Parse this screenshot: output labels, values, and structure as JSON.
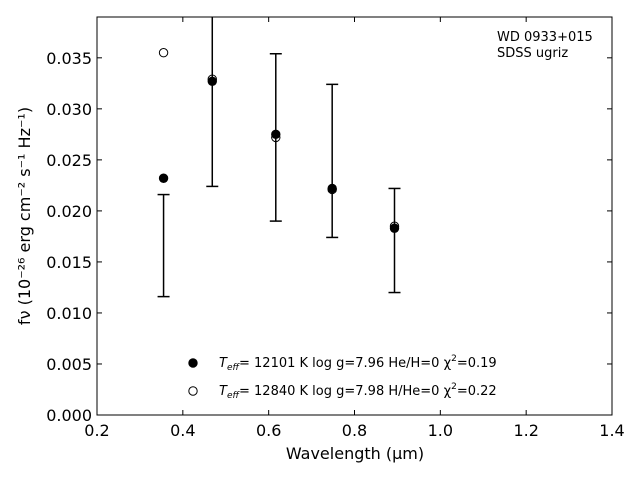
{
  "chart_data": {
    "type": "scatter",
    "title": "",
    "annotation": [
      "WD 0933+015",
      "SDSS ugriz"
    ],
    "xlabel": "Wavelength",
    "xlabel_unit": "(μm)",
    "ylabel": "fν (10⁻²⁶ erg cm⁻² s⁻¹ Hz⁻¹)",
    "xlim": [
      0.2,
      1.4
    ],
    "ylim": [
      0.0,
      0.039
    ],
    "xticks": [
      "0.2",
      "0.4",
      "0.6",
      "0.8",
      "1.0",
      "1.2",
      "1.4"
    ],
    "yticks": [
      "0.000",
      "0.005",
      "0.010",
      "0.015",
      "0.020",
      "0.025",
      "0.030",
      "0.035"
    ],
    "xtick_values": [
      0.2,
      0.4,
      0.6,
      0.8,
      1.0,
      1.2,
      1.4
    ],
    "ytick_values": [
      0.0,
      0.005,
      0.01,
      0.015,
      0.02,
      0.025,
      0.03,
      0.035
    ],
    "observed": {
      "x": [
        0.3551,
        0.4686,
        0.6166,
        0.748,
        0.8932
      ],
      "y": [
        0.0166,
        0.0327,
        0.0272,
        0.0249,
        0.0171
      ],
      "yerr": [
        0.005,
        0.0103,
        0.0082,
        0.0075,
        0.0051
      ]
    },
    "series": [
      {
        "name": "T_eff= 12101 K  log g=7.96  He/H=0  χ²=0.19",
        "marker": "filled",
        "x": [
          0.3551,
          0.4686,
          0.6166,
          0.748,
          0.8932
        ],
        "y": [
          0.0232,
          0.0327,
          0.0275,
          0.0222,
          0.0183
        ]
      },
      {
        "name": "T_eff= 12840 K  log g=7.98  H/He=0  χ²=0.22",
        "marker": "open",
        "x": [
          0.3551,
          0.4686,
          0.6166,
          0.748,
          0.8932
        ],
        "y": [
          0.0355,
          0.0329,
          0.0272,
          0.0221,
          0.0185
        ]
      }
    ],
    "legend": [
      {
        "teff": "T",
        "sub": "eff",
        "rest": "= 12101 K  log g=7.96  He/H=0  χ",
        "sup": "2",
        "tail": "=0.19"
      },
      {
        "teff": "T",
        "sub": "eff",
        "rest": "= 12840 K  log g=7.98  H/He=0  χ",
        "sup": "2",
        "tail": "=0.22"
      }
    ],
    "legend_position": "lower-center",
    "grid": false
  }
}
